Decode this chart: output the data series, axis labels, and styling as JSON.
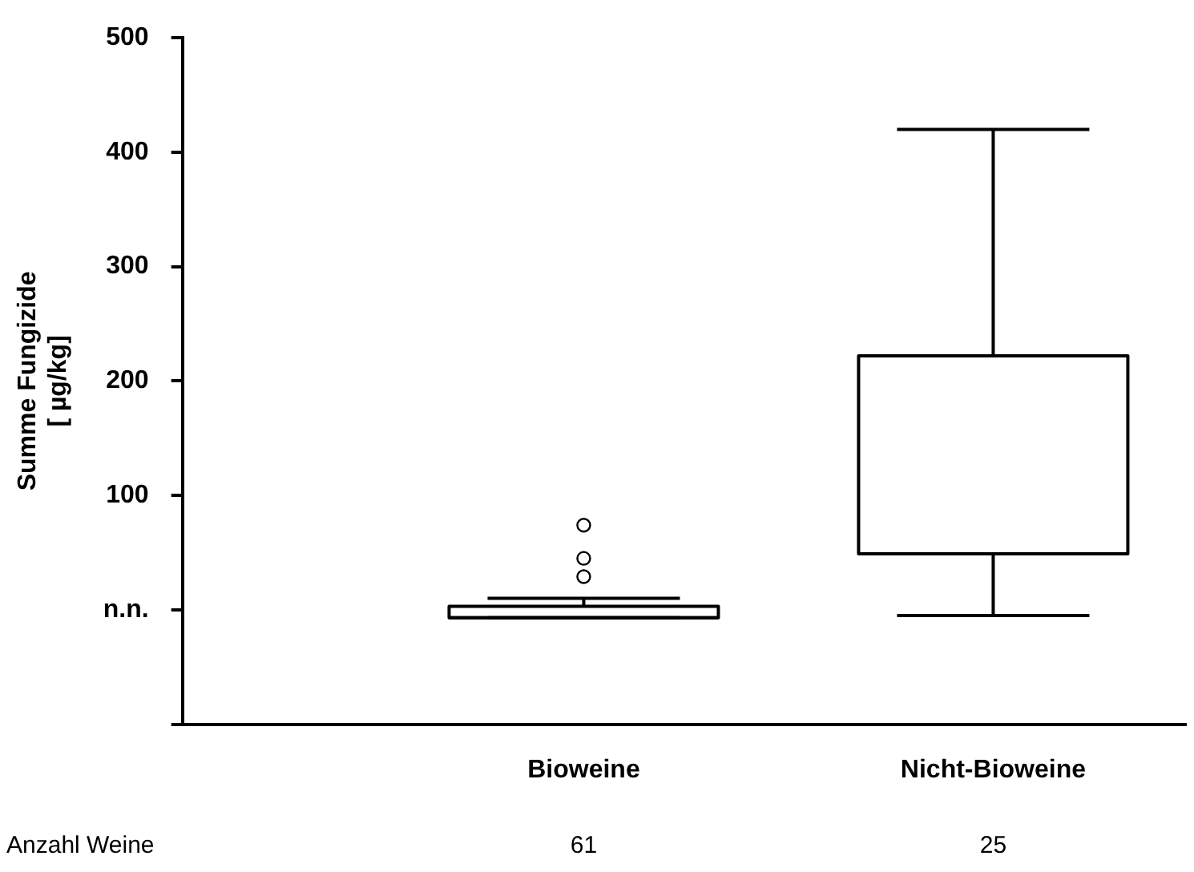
{
  "chart_data": {
    "type": "box",
    "ylabel": "Summe Fungizide\n[ µg/kg]",
    "categories": [
      "Bioweine",
      "Nicht-Bioweine"
    ],
    "boxes": [
      {
        "low": -7,
        "q1": -7,
        "median": -7,
        "q3": 3,
        "high": 10,
        "outliers": [
          74,
          45,
          29
        ]
      },
      {
        "low": -5,
        "q1": 49,
        "median": 49,
        "q3": 222,
        "high": 420
      }
    ],
    "color": "#000000",
    "ylim": [
      -100,
      500
    ],
    "yticks": [
      {
        "value": -100,
        "label": null
      },
      {
        "value": 0,
        "label": "n.n."
      },
      100,
      200,
      300,
      400,
      500
    ],
    "grid": false,
    "legend": false,
    "marker": "circle",
    "annotations": [
      "Anzahl Weine",
      "61",
      "25"
    ]
  }
}
